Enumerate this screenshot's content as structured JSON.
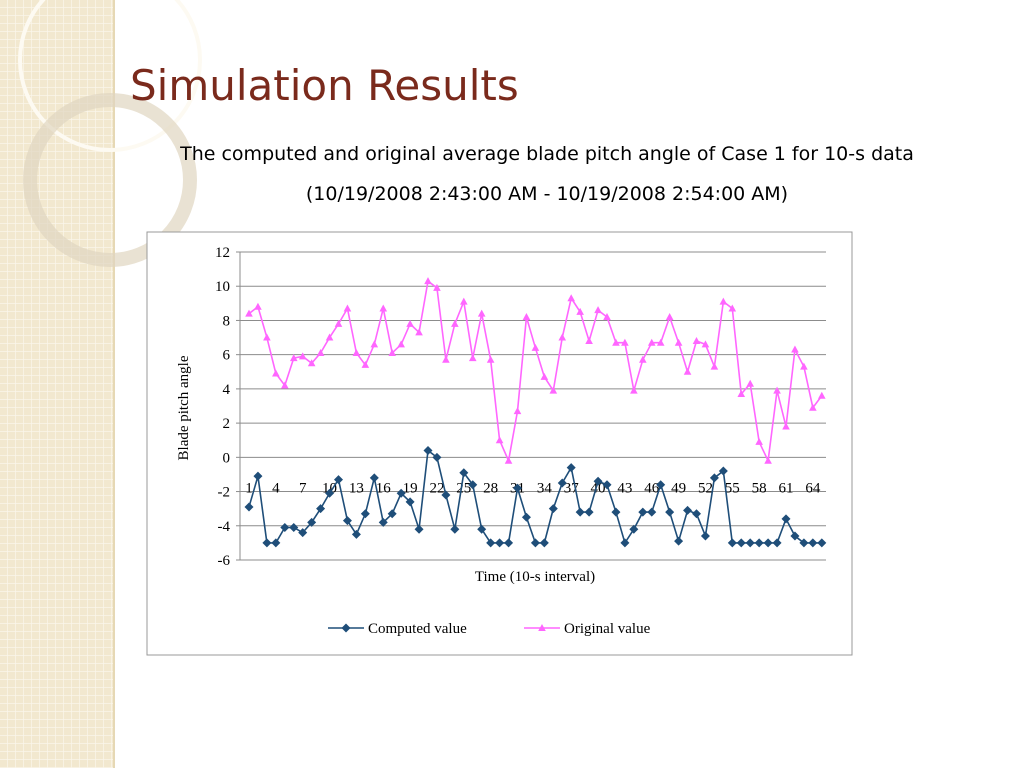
{
  "heading": "Simulation Results",
  "chart_data": {
    "type": "line",
    "title": "The computed and original average blade pitch angle of Case 1 for 10-s data",
    "subtitle": "(10/19/2008  2:43:00 AM - 10/19/2008  2:54:00 AM)",
    "x_label": "Time (10-s  interval)",
    "y_label": "Blade pitch angle",
    "categories": [
      "1",
      null,
      null,
      "4",
      null,
      null,
      "7",
      null,
      null,
      "10",
      null,
      null,
      "13",
      null,
      null,
      "16",
      null,
      null,
      "19",
      null,
      null,
      "22",
      null,
      null,
      "25",
      null,
      null,
      "28",
      null,
      null,
      "31",
      null,
      null,
      "34",
      null,
      null,
      "37",
      null,
      null,
      "40",
      null,
      null,
      "43",
      null,
      null,
      "46",
      null,
      null,
      "49",
      null,
      null,
      "52",
      null,
      null,
      "55",
      null,
      null,
      "58",
      null,
      null,
      "61",
      null,
      null,
      "64",
      null
    ],
    "series": [
      {
        "name": "Computed value",
        "color": "#1f4e79",
        "marker": "diamond",
        "values": [
          -2.9,
          -1.1,
          -5.0,
          -5.0,
          -4.1,
          -4.1,
          -4.4,
          -3.8,
          -3.0,
          -2.1,
          -1.3,
          -3.7,
          -4.5,
          -3.3,
          -1.2,
          -3.8,
          -3.3,
          -2.1,
          -2.6,
          -4.2,
          0.4,
          0.0,
          -2.2,
          -4.2,
          -0.9,
          -1.6,
          -4.2,
          -5.0,
          -5.0,
          -5.0,
          -1.8,
          -3.5,
          -5.0,
          -5.0,
          -3.0,
          -1.5,
          -0.6,
          -3.2,
          -3.2,
          -1.4,
          -1.6,
          -3.2,
          -5.0,
          -4.2,
          -3.2,
          -3.2,
          -1.6,
          -3.2,
          -4.9,
          -3.1,
          -3.3,
          -4.6,
          -1.2,
          -0.8,
          -5.0,
          -5.0,
          -5.0,
          -5.0,
          -5.0,
          -5.0,
          -3.6,
          -4.6,
          -5.0,
          -5.0,
          -5.0
        ]
      },
      {
        "name": "Original value",
        "color": "#ff66ff",
        "marker": "triangle",
        "values": [
          8.4,
          8.8,
          7.0,
          4.9,
          4.2,
          5.8,
          5.9,
          5.5,
          6.1,
          7.0,
          7.8,
          8.7,
          6.1,
          5.4,
          6.6,
          8.7,
          6.1,
          6.6,
          7.8,
          7.3,
          10.3,
          9.9,
          5.7,
          7.8,
          9.1,
          5.8,
          8.4,
          5.7,
          1.0,
          -0.2,
          2.7,
          8.2,
          6.4,
          4.7,
          3.9,
          7.0,
          9.3,
          8.5,
          6.8,
          8.6,
          8.2,
          6.7,
          6.7,
          3.9,
          5.7,
          6.7,
          6.7,
          8.2,
          6.7,
          5.0,
          6.8,
          6.6,
          5.3,
          9.1,
          8.7,
          3.7,
          4.3,
          0.9,
          -0.2,
          3.9,
          1.8,
          6.3,
          5.3,
          2.9,
          3.6
        ]
      }
    ],
    "ylim": [
      -6,
      12
    ],
    "yticks": [
      -6,
      -4,
      -2,
      0,
      2,
      4,
      6,
      8,
      10,
      12
    ],
    "grid": true,
    "legend": "bottom"
  }
}
